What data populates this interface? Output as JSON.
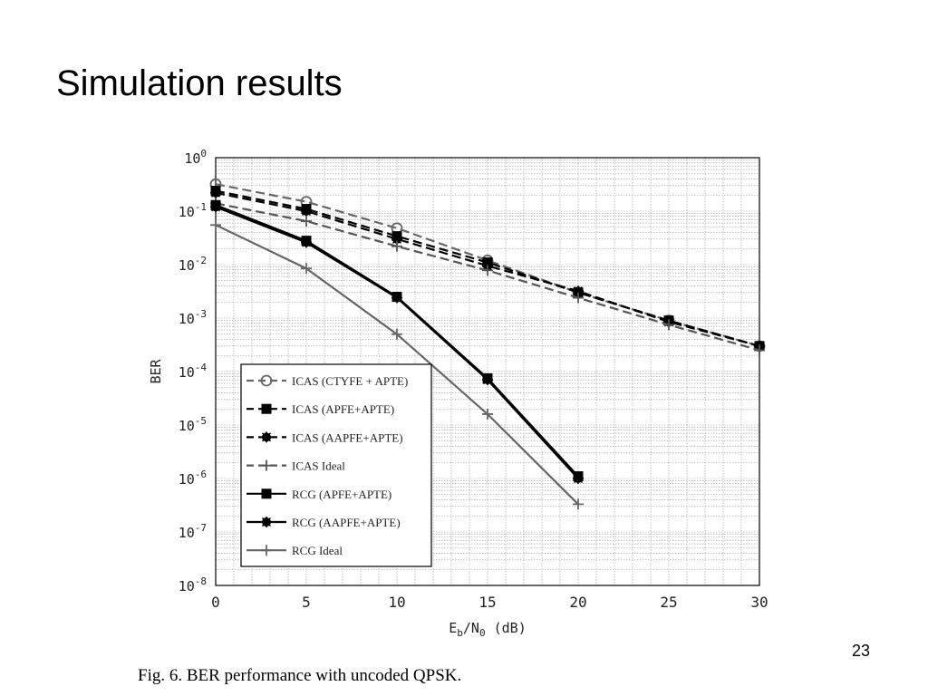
{
  "slide": {
    "title": "Simulation results",
    "page_number": "23",
    "caption": "Fig. 6.   BER performance with uncoded QPSK."
  },
  "chart_data": {
    "type": "line",
    "ylabel": "BER",
    "xlabel_parts": [
      "E",
      "b",
      "/N",
      "0",
      " (dB)"
    ],
    "xlim": [
      0,
      30
    ],
    "ylim": [
      1e-08,
      1
    ],
    "yscale": "log",
    "grid": true,
    "x_ticks": [
      0,
      5,
      10,
      15,
      20,
      25,
      30
    ],
    "x_tick_labels": [
      "0",
      "5",
      "10",
      "15",
      "20",
      "25",
      "30"
    ],
    "y_tick_exponents": [
      0,
      -1,
      -2,
      -3,
      -4,
      -5,
      -6,
      -7,
      -8
    ],
    "legend_position": "lower-left",
    "series": [
      {
        "name": "ICAS (CTYFE + APTE)",
        "color": "#666666",
        "dash": "dashed",
        "marker": "circle",
        "x": [
          0,
          5,
          10,
          15,
          20,
          25,
          30
        ],
        "y": [
          0.32,
          0.15,
          0.048,
          0.012,
          0.003,
          0.0009,
          0.0003
        ]
      },
      {
        "name": "ICAS (APFE+APTE)",
        "color": "#000000",
        "dash": "dashed",
        "marker": "square",
        "x": [
          0,
          5,
          10,
          15,
          20,
          25,
          30
        ],
        "y": [
          0.24,
          0.11,
          0.034,
          0.011,
          0.003,
          0.0009,
          0.0003
        ]
      },
      {
        "name": "ICAS (AAPFE+APTE)",
        "color": "#000000",
        "dash": "dashed",
        "marker": "star",
        "x": [
          0,
          5,
          10,
          15,
          20,
          25,
          30
        ],
        "y": [
          0.22,
          0.1,
          0.03,
          0.0095,
          0.0032,
          0.00085,
          0.0003
        ]
      },
      {
        "name": "ICAS Ideal",
        "color": "#555555",
        "dash": "dashed",
        "marker": "plus",
        "x": [
          0,
          5,
          10,
          15,
          20,
          25,
          30
        ],
        "y": [
          0.14,
          0.065,
          0.022,
          0.0078,
          0.0024,
          0.00075,
          0.00025
        ]
      },
      {
        "name": "RCG (APFE+APTE)",
        "color": "#000000",
        "dash": "solid",
        "marker": "square",
        "x": [
          0,
          5,
          10,
          15,
          20
        ],
        "y": [
          0.13,
          0.028,
          0.0025,
          7.5e-05,
          1.1e-06
        ]
      },
      {
        "name": "RCG (AAPFE+APTE)",
        "color": "#000000",
        "dash": "solid",
        "marker": "star",
        "x": [
          0,
          5,
          10,
          15,
          20
        ],
        "y": [
          0.12,
          0.026,
          0.0024,
          7e-05,
          1e-06
        ]
      },
      {
        "name": "RCG Ideal",
        "color": "#666666",
        "dash": "solid",
        "marker": "plus",
        "x": [
          0,
          5,
          10,
          15,
          20
        ],
        "y": [
          0.055,
          0.0085,
          0.0005,
          1.6e-05,
          3.3e-07
        ]
      }
    ]
  }
}
